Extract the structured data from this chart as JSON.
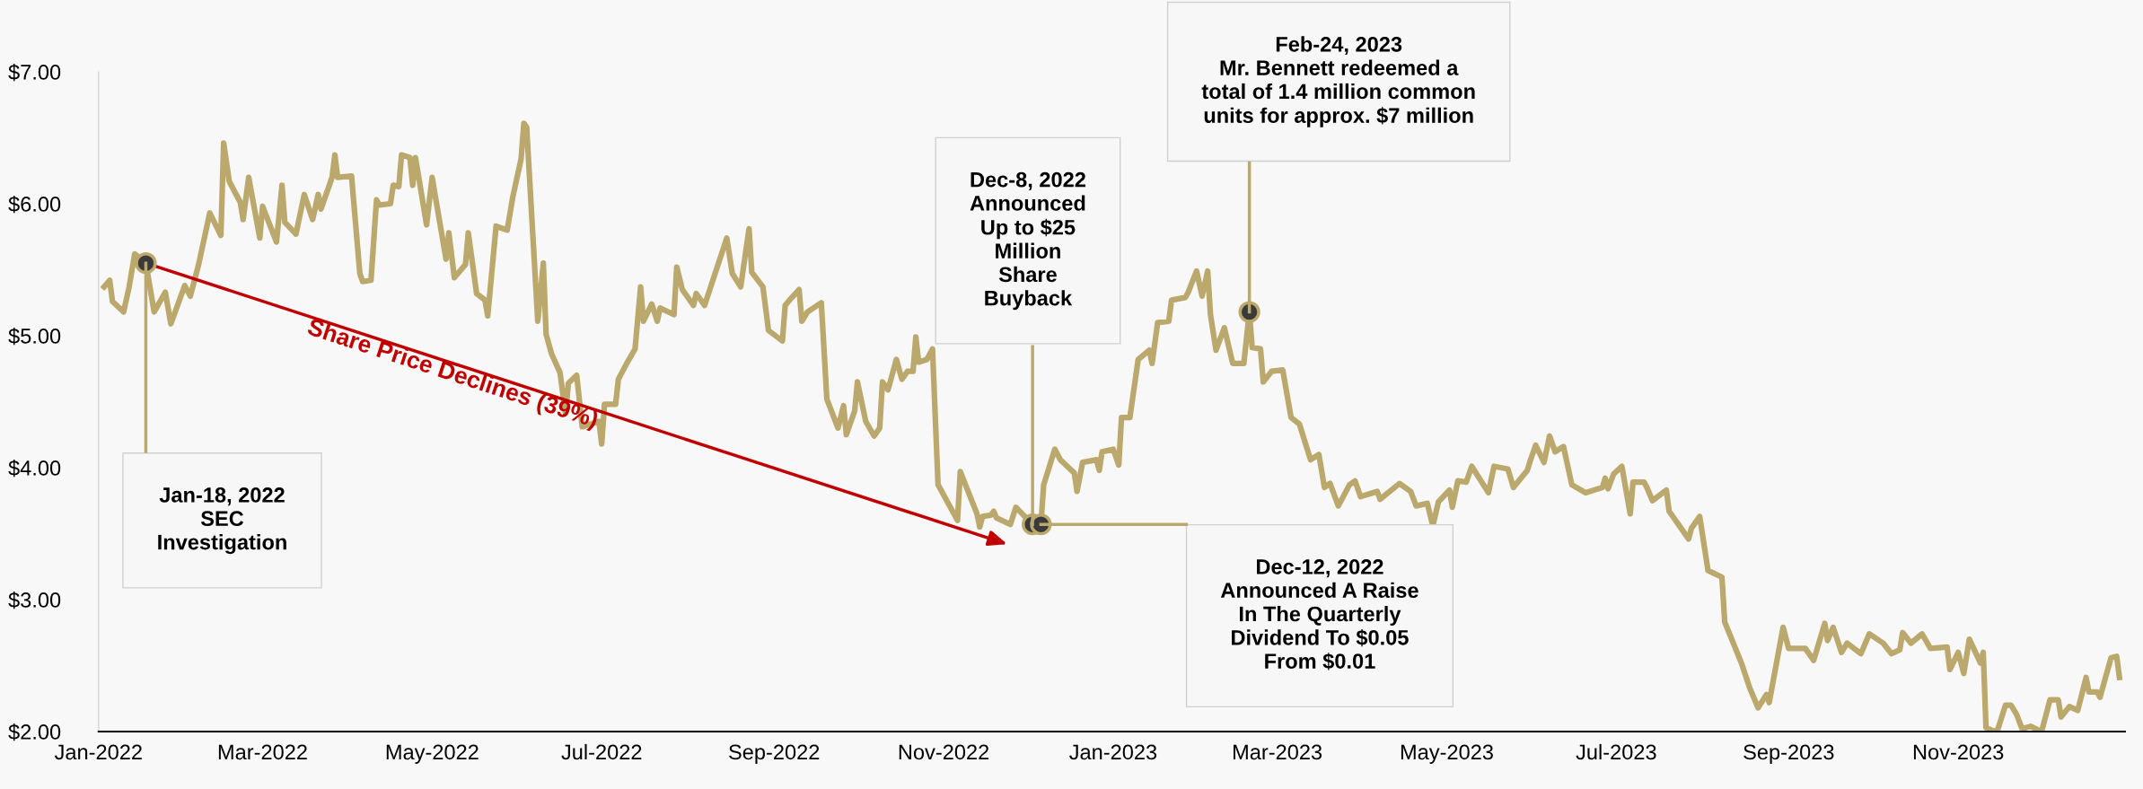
{
  "chart_data": {
    "type": "line",
    "xlim": [
      "2022-01-01",
      "2023-12-31"
    ],
    "ylim": [
      2,
      7
    ],
    "xticks": [
      {
        "value": "2022-01-01",
        "label": "Jan-2022"
      },
      {
        "value": "2022-03-01",
        "label": "Mar-2022"
      },
      {
        "value": "2022-05-01",
        "label": "May-2022"
      },
      {
        "value": "2022-07-01",
        "label": "Jul-2022"
      },
      {
        "value": "2022-09-01",
        "label": "Sep-2022"
      },
      {
        "value": "2022-11-01",
        "label": "Nov-2022"
      },
      {
        "value": "2023-01-01",
        "label": "Jan-2023"
      },
      {
        "value": "2023-03-01",
        "label": "Mar-2023"
      },
      {
        "value": "2023-05-01",
        "label": "May-2023"
      },
      {
        "value": "2023-07-01",
        "label": "Jul-2023"
      },
      {
        "value": "2023-09-01",
        "label": "Sep-2023"
      },
      {
        "value": "2023-11-01",
        "label": "Nov-2023"
      }
    ],
    "yticks": [
      {
        "value": 2,
        "label": "$2.00"
      },
      {
        "value": 3,
        "label": "$3.00"
      },
      {
        "value": 4,
        "label": "$4.00"
      },
      {
        "value": 5,
        "label": "$5.00"
      },
      {
        "value": 6,
        "label": "$6.00"
      },
      {
        "value": 7,
        "label": "$7.00"
      }
    ],
    "grid": false,
    "legend": false,
    "marker": "none",
    "line_style": "solid",
    "x": [
      "2022-01-03",
      "2022-01-05",
      "2022-01-06",
      "2022-01-10",
      "2022-01-12",
      "2022-01-14",
      "2022-01-18",
      "2022-01-21",
      "2022-01-25",
      "2022-01-27",
      "2022-02-01",
      "2022-02-03",
      "2022-02-06",
      "2022-02-10",
      "2022-02-14",
      "2022-02-15",
      "2022-02-17",
      "2022-02-21",
      "2022-02-22",
      "2022-02-24",
      "2022-02-28",
      "2022-03-01",
      "2022-03-06",
      "2022-03-08",
      "2022-03-09",
      "2022-03-13",
      "2022-03-16",
      "2022-03-19",
      "2022-03-21",
      "2022-03-22",
      "2022-03-26",
      "2022-03-27",
      "2022-03-28",
      "2022-04-02",
      "2022-04-05",
      "2022-04-06",
      "2022-04-09",
      "2022-04-11",
      "2022-04-12",
      "2022-04-16",
      "2022-04-17",
      "2022-04-19",
      "2022-04-20",
      "2022-04-23",
      "2022-04-24",
      "2022-04-25",
      "2022-04-29",
      "2022-05-01",
      "2022-05-03",
      "2022-05-06",
      "2022-05-07",
      "2022-05-09",
      "2022-05-13",
      "2022-05-14",
      "2022-05-17",
      "2022-05-20",
      "2022-05-21",
      "2022-05-24",
      "2022-05-28",
      "2022-05-30",
      "2022-06-02",
      "2022-06-03",
      "2022-06-04",
      "2022-06-08",
      "2022-06-10",
      "2022-06-11",
      "2022-06-13",
      "2022-06-16",
      "2022-06-18",
      "2022-06-19",
      "2022-06-22",
      "2022-06-24",
      "2022-06-30",
      "2022-07-01",
      "2022-07-02",
      "2022-07-06",
      "2022-07-07",
      "2022-07-10",
      "2022-07-13",
      "2022-07-15",
      "2022-07-16",
      "2022-07-19",
      "2022-07-21",
      "2022-07-22",
      "2022-07-27",
      "2022-07-28",
      "2022-07-30",
      "2022-08-03",
      "2022-08-04",
      "2022-08-07",
      "2022-08-15",
      "2022-08-17",
      "2022-08-20",
      "2022-08-23",
      "2022-08-24",
      "2022-08-28",
      "2022-08-30",
      "2022-09-04",
      "2022-09-05",
      "2022-09-07",
      "2022-09-10",
      "2022-09-11",
      "2022-09-13",
      "2022-09-18",
      "2022-09-20",
      "2022-09-24",
      "2022-09-26",
      "2022-09-27",
      "2022-09-30",
      "2022-10-01",
      "2022-10-04",
      "2022-10-07",
      "2022-10-09",
      "2022-10-10",
      "2022-10-12",
      "2022-10-15",
      "2022-10-17",
      "2022-10-19",
      "2022-10-21",
      "2022-10-22",
      "2022-10-23",
      "2022-10-26",
      "2022-10-28",
      "2022-10-30",
      "2022-11-06",
      "2022-11-07",
      "2022-11-13",
      "2022-11-14",
      "2022-11-15",
      "2022-11-18",
      "2022-11-19",
      "2022-11-20",
      "2022-11-25",
      "2022-11-27",
      "2022-12-03",
      "2022-12-06",
      "2022-12-07",
      "2022-12-11",
      "2022-12-13",
      "2022-12-18",
      "2022-12-19",
      "2022-12-21",
      "2022-12-26",
      "2022-12-27",
      "2022-12-28",
      "2023-01-01",
      "2023-01-03",
      "2023-01-04",
      "2023-01-07",
      "2023-01-10",
      "2023-01-14",
      "2023-01-15",
      "2023-01-17",
      "2023-01-21",
      "2023-01-22",
      "2023-01-27",
      "2023-01-28",
      "2023-01-31",
      "2023-02-02",
      "2023-02-04",
      "2023-02-05",
      "2023-02-07",
      "2023-02-10",
      "2023-02-13",
      "2023-02-17",
      "2023-02-19",
      "2023-02-20",
      "2023-02-23",
      "2023-02-24",
      "2023-02-27",
      "2023-03-03",
      "2023-03-06",
      "2023-03-09",
      "2023-03-13",
      "2023-03-16",
      "2023-03-18",
      "2023-03-20",
      "2023-03-23",
      "2023-03-27",
      "2023-03-29",
      "2023-03-31",
      "2023-04-06",
      "2023-04-07",
      "2023-04-14",
      "2023-04-18",
      "2023-04-20",
      "2023-04-24",
      "2023-04-26",
      "2023-04-28",
      "2023-05-02",
      "2023-05-03",
      "2023-05-05",
      "2023-05-08",
      "2023-05-10",
      "2023-05-16",
      "2023-05-18",
      "2023-05-23",
      "2023-05-25",
      "2023-05-30",
      "2023-05-31",
      "2023-06-02",
      "2023-06-05",
      "2023-06-07",
      "2023-06-09",
      "2023-06-12",
      "2023-06-15",
      "2023-06-20",
      "2023-06-26",
      "2023-06-27",
      "2023-06-28",
      "2023-06-30",
      "2023-07-03",
      "2023-07-06",
      "2023-07-07",
      "2023-07-11",
      "2023-07-12",
      "2023-07-14",
      "2023-07-19",
      "2023-07-20",
      "2023-07-27",
      "2023-07-28",
      "2023-07-31",
      "2023-08-03",
      "2023-08-08",
      "2023-08-09",
      "2023-08-15",
      "2023-08-18",
      "2023-08-21",
      "2023-08-24",
      "2023-08-25",
      "2023-08-30",
      "2023-09-01",
      "2023-09-07",
      "2023-09-10",
      "2023-09-14",
      "2023-09-15",
      "2023-09-17",
      "2023-09-20",
      "2023-09-22",
      "2023-09-27",
      "2023-09-30",
      "2023-10-05",
      "2023-10-08",
      "2023-10-11",
      "2023-10-12",
      "2023-10-15",
      "2023-10-19",
      "2023-10-22",
      "2023-10-28",
      "2023-10-29",
      "2023-11-01",
      "2023-11-03",
      "2023-11-05",
      "2023-11-09",
      "2023-11-10",
      "2023-11-11",
      "2023-11-13",
      "2023-11-15",
      "2023-11-18",
      "2023-11-20",
      "2023-11-22",
      "2023-11-24",
      "2023-11-27",
      "2023-12-01",
      "2023-12-02",
      "2023-12-04",
      "2023-12-07",
      "2023-12-08",
      "2023-12-11",
      "2023-12-14",
      "2023-12-17",
      "2023-12-18",
      "2023-12-21",
      "2023-12-22",
      "2023-12-26",
      "2023-12-28",
      "2023-12-29"
    ],
    "series": [
      {
        "color": "#bba86c",
        "values": [
          5.37,
          5.42,
          5.26,
          5.18,
          5.37,
          5.62,
          5.55,
          5.18,
          5.33,
          5.09,
          5.38,
          5.3,
          5.54,
          5.93,
          5.76,
          6.46,
          6.17,
          6.01,
          5.88,
          6.2,
          5.74,
          5.98,
          5.71,
          6.14,
          5.86,
          5.77,
          6.07,
          5.88,
          6.07,
          5.96,
          6.2,
          6.37,
          6.2,
          6.21,
          5.47,
          5.41,
          5.42,
          6.03,
          5.99,
          6.0,
          6.14,
          6.13,
          6.37,
          6.35,
          6.14,
          6.35,
          5.84,
          6.2,
          5.95,
          5.58,
          5.78,
          5.44,
          5.54,
          5.78,
          5.32,
          5.27,
          5.15,
          5.83,
          5.8,
          6.05,
          6.34,
          6.61,
          6.58,
          5.11,
          5.55,
          5.01,
          4.86,
          4.72,
          4.41,
          4.64,
          4.7,
          4.31,
          4.35,
          4.18,
          4.48,
          4.48,
          4.67,
          4.79,
          4.9,
          5.37,
          5.11,
          5.24,
          5.11,
          5.21,
          5.16,
          5.52,
          5.35,
          5.23,
          5.32,
          5.23,
          5.74,
          5.47,
          5.37,
          5.81,
          5.48,
          5.37,
          5.04,
          4.96,
          5.23,
          5.28,
          5.35,
          5.11,
          5.18,
          5.25,
          4.52,
          4.3,
          4.47,
          4.25,
          4.43,
          4.65,
          4.35,
          4.24,
          4.3,
          4.65,
          4.59,
          4.82,
          4.67,
          4.73,
          4.73,
          4.99,
          4.8,
          4.82,
          4.9,
          3.87,
          3.6,
          3.97,
          3.65,
          3.55,
          3.63,
          3.64,
          3.67,
          3.62,
          3.57,
          3.7,
          3.57,
          3.57,
          3.87,
          4.14,
          4.06,
          3.96,
          3.82,
          4.04,
          4.06,
          3.98,
          4.12,
          4.14,
          4.02,
          4.38,
          4.38,
          4.82,
          4.89,
          4.79,
          5.1,
          5.11,
          5.27,
          5.29,
          5.33,
          5.49,
          5.3,
          5.49,
          5.16,
          4.89,
          5.06,
          4.79,
          4.79,
          5.18,
          4.91,
          4.9,
          4.65,
          4.73,
          4.74,
          4.38,
          4.33,
          4.06,
          4.1,
          3.85,
          3.88,
          3.71,
          3.87,
          3.9,
          3.78,
          3.82,
          3.76,
          3.88,
          3.82,
          3.71,
          3.73,
          3.56,
          3.74,
          3.83,
          3.7,
          3.9,
          3.89,
          4.01,
          3.81,
          4.01,
          3.99,
          3.85,
          3.98,
          4.05,
          4.17,
          4.04,
          4.24,
          4.12,
          4.16,
          3.87,
          3.81,
          3.85,
          3.92,
          3.84,
          3.95,
          4.01,
          3.65,
          3.89,
          3.89,
          3.85,
          3.75,
          3.83,
          3.67,
          3.46,
          3.54,
          3.63,
          3.22,
          3.17,
          2.83,
          2.52,
          2.33,
          2.18,
          2.28,
          2.22,
          2.79,
          2.63,
          2.63,
          2.54,
          2.82,
          2.69,
          2.79,
          2.6,
          2.67,
          2.59,
          2.74,
          2.67,
          2.59,
          2.62,
          2.75,
          2.67,
          2.74,
          2.63,
          2.64,
          2.47,
          2.6,
          2.44,
          2.7,
          2.52,
          2.6,
          2.03,
          2.01,
          2.0,
          2.2,
          2.2,
          2.13,
          2.02,
          2.04,
          2.0,
          2.08,
          2.24,
          2.24,
          2.11,
          2.19,
          2.16,
          2.41,
          2.3,
          2.3,
          2.26,
          2.56,
          2.57,
          2.41
        ]
      }
    ],
    "annotations": [
      "Jan-18, 2022\nSEC\nInvestigation",
      "Dec-8, 2022\nAnnounced\nUp to $25\nMillion\nShare\nBuyback",
      "Dec-12, 2022\nAnnounced A Raise\nIn The Quarterly\nDividend To $0.05\nFrom $0.01",
      "Feb-24, 2023\nMr. Bennett redeemed a\ntotal of 1.4 million common\nunits for approx. $7 million",
      "Share Price Declines (39%)"
    ]
  }
}
